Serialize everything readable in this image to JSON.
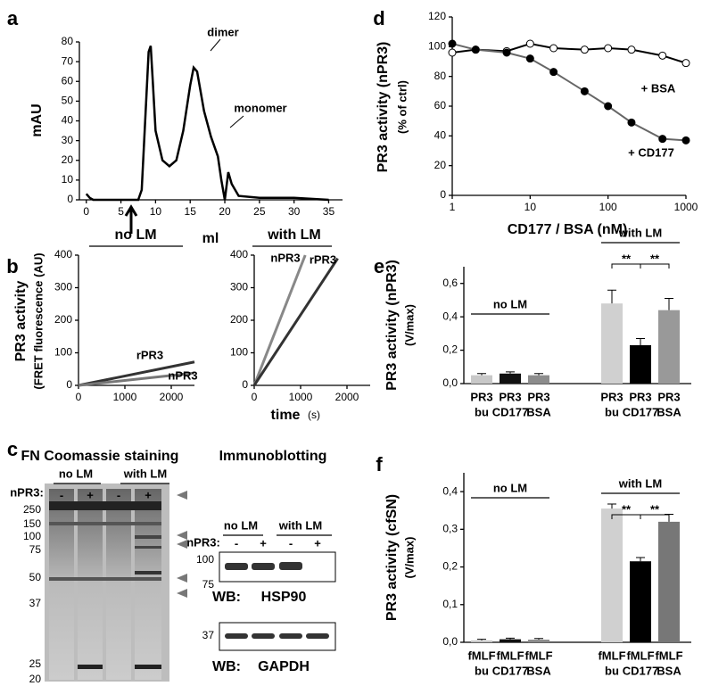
{
  "chart_data": [
    {
      "type": "line",
      "panel": "a",
      "xlabel": "ml",
      "ylabel": "mAU",
      "annotations": [
        "dimer",
        "monomer"
      ],
      "x": [
        0,
        0.5,
        1,
        7.5,
        8,
        8.5,
        9,
        9.3,
        9.6,
        10,
        11,
        12,
        13,
        14,
        15,
        15.5,
        16,
        17,
        18,
        19,
        19.5,
        20,
        20.5,
        21,
        22,
        25,
        30,
        35
      ],
      "series": [
        {
          "color": "#000000",
          "values": [
            3,
            1,
            0,
            0,
            5,
            40,
            75,
            78,
            60,
            35,
            20,
            17,
            20,
            35,
            58,
            67,
            65,
            45,
            32,
            22,
            10,
            0,
            14,
            8,
            2,
            1,
            1,
            0
          ]
        }
      ],
      "xlim": [
        -1,
        37
      ],
      "xticks": [
        0,
        5,
        10,
        15,
        20,
        25,
        30,
        35
      ],
      "ylim": [
        0,
        80
      ],
      "yticks": [
        0,
        10,
        20,
        30,
        40,
        50,
        60,
        70,
        80
      ]
    },
    {
      "type": "line",
      "panel": "b",
      "title": "no LM",
      "ylabel": [
        "PR3 activity",
        "(FRET fluorescence (AU)"
      ],
      "xlabel": [
        "time",
        "(s)"
      ],
      "series": [
        {
          "name": "rPR3",
          "color": "#333333",
          "x": [
            0,
            2500
          ],
          "values": [
            0,
            72
          ]
        },
        {
          "name": "nPR3",
          "color": "#777777",
          "x": [
            0,
            2500
          ],
          "values": [
            0,
            38
          ]
        }
      ],
      "xlim": [
        0,
        2500
      ],
      "xticks": [
        0,
        1000,
        2000
      ],
      "ylim": [
        0,
        400
      ],
      "yticks": [
        0,
        100,
        200,
        300,
        400
      ]
    },
    {
      "type": "line",
      "title": "with LM",
      "series": [
        {
          "name": "nPR3",
          "color": "#888888",
          "x": [
            0,
            1100
          ],
          "values": [
            0,
            400
          ]
        },
        {
          "name": "rPR3",
          "color": "#333333",
          "x": [
            0,
            1800
          ],
          "values": [
            0,
            390
          ]
        }
      ],
      "xlim": [
        0,
        2500
      ],
      "xticks": [
        0,
        1000,
        2000
      ],
      "ylim": [
        0,
        400
      ],
      "yticks": [
        0,
        100,
        200,
        300,
        400
      ]
    },
    {
      "type": "line",
      "panel": "d",
      "xscale": "log",
      "xlabel": "CD177 / BSA (nM)",
      "ylabel": [
        "PR3 activity (nPR3)",
        "(% of ctrl)"
      ],
      "x": [
        1,
        2,
        5,
        10,
        20,
        50,
        100,
        200,
        500,
        1000
      ],
      "series": [
        {
          "name": "+ BSA",
          "color": "#000000",
          "marker_fill": "#ffffff",
          "values": [
            96,
            98,
            97,
            102,
            99,
            98,
            99,
            98,
            94,
            89
          ]
        },
        {
          "name": "+ CD177",
          "color": "#666666",
          "marker_fill": "#000000",
          "values": [
            102,
            98,
            96,
            92,
            83,
            70,
            60,
            49,
            38,
            37
          ]
        }
      ],
      "xlim": [
        1,
        1000
      ],
      "xticks": [
        1,
        10,
        100,
        1000
      ],
      "ylim": [
        0,
        120
      ],
      "yticks": [
        0,
        20,
        40,
        60,
        80,
        100,
        120
      ]
    },
    {
      "type": "bar",
      "panel": "e",
      "ylabel": [
        "PR3 activity (nPR3)",
        "(V/max)"
      ],
      "group_labels": [
        "no LM",
        "with LM"
      ],
      "significance": [
        "**",
        "**"
      ],
      "categories": [
        [
          "PR3",
          "bu"
        ],
        [
          "PR3",
          "CD177"
        ],
        [
          "PR3",
          "BSA"
        ],
        [
          "PR3",
          "bu"
        ],
        [
          "PR3",
          "CD177"
        ],
        [
          "PR3",
          "BSA"
        ]
      ],
      "values": [
        0.05,
        0.06,
        0.05,
        0.48,
        0.23,
        0.44
      ],
      "errors": [
        0.01,
        0.01,
        0.01,
        0.08,
        0.04,
        0.07
      ],
      "colors": [
        "#c8c8c8",
        "#111111",
        "#8c8c8c",
        "#d0d0d0",
        "#000000",
        "#999999"
      ],
      "ylim": [
        0,
        0.7
      ],
      "yticks": [
        {
          "value": 0,
          "label": "0,0"
        },
        {
          "value": 0.2,
          "label": "0,2"
        },
        {
          "value": 0.4,
          "label": "0,4"
        },
        {
          "value": 0.6,
          "label": "0,6"
        }
      ]
    },
    {
      "type": "bar",
      "panel": "f",
      "ylabel": [
        "PR3 activity (cfSN)",
        "(V/max)"
      ],
      "group_labels": [
        "no LM",
        "with LM"
      ],
      "significance": [
        "**",
        "**"
      ],
      "categories": [
        [
          "fMLF",
          "bu"
        ],
        [
          "fMLF",
          "CD177"
        ],
        [
          "fMLF",
          "BSA"
        ],
        [
          "fMLF",
          "bu"
        ],
        [
          "fMLF",
          "CD177"
        ],
        [
          "fMLF",
          "BSA"
        ]
      ],
      "values": [
        0.005,
        0.008,
        0.007,
        0.355,
        0.215,
        0.32
      ],
      "errors": [
        0.003,
        0.003,
        0.003,
        0.012,
        0.01,
        0.02
      ],
      "colors": [
        "#c8c8c8",
        "#111111",
        "#8c8c8c",
        "#d0d0d0",
        "#000000",
        "#777777"
      ],
      "ylim": [
        0,
        0.45
      ],
      "yticks": [
        {
          "value": 0,
          "label": "0,0"
        },
        {
          "value": 0.1,
          "label": "0,1"
        },
        {
          "value": 0.2,
          "label": "0,2"
        },
        {
          "value": 0.3,
          "label": "0,3"
        },
        {
          "value": 0.4,
          "label": "0,4"
        }
      ]
    }
  ],
  "gels": {
    "panel": "c",
    "coomassie": {
      "title": "FN Coomassie staining",
      "groups": [
        "no LM",
        "with LM"
      ],
      "lane_label": "nPR3:",
      "lanes": [
        "-",
        "+",
        "-",
        "+"
      ],
      "markers": [
        250,
        150,
        100,
        75,
        50,
        37,
        25,
        20
      ]
    },
    "immunoblot": {
      "title": "Immunoblotting",
      "groups": [
        "no LM",
        "with LM"
      ],
      "lane_label": "nPR3:",
      "lanes": [
        "-",
        "+",
        "-",
        "+"
      ],
      "blots": [
        {
          "label": "WB:",
          "protein": "HSP90",
          "markers": [
            100,
            75
          ]
        },
        {
          "label": "WB:",
          "protein": "GAPDH",
          "markers": [
            37
          ]
        }
      ]
    }
  }
}
